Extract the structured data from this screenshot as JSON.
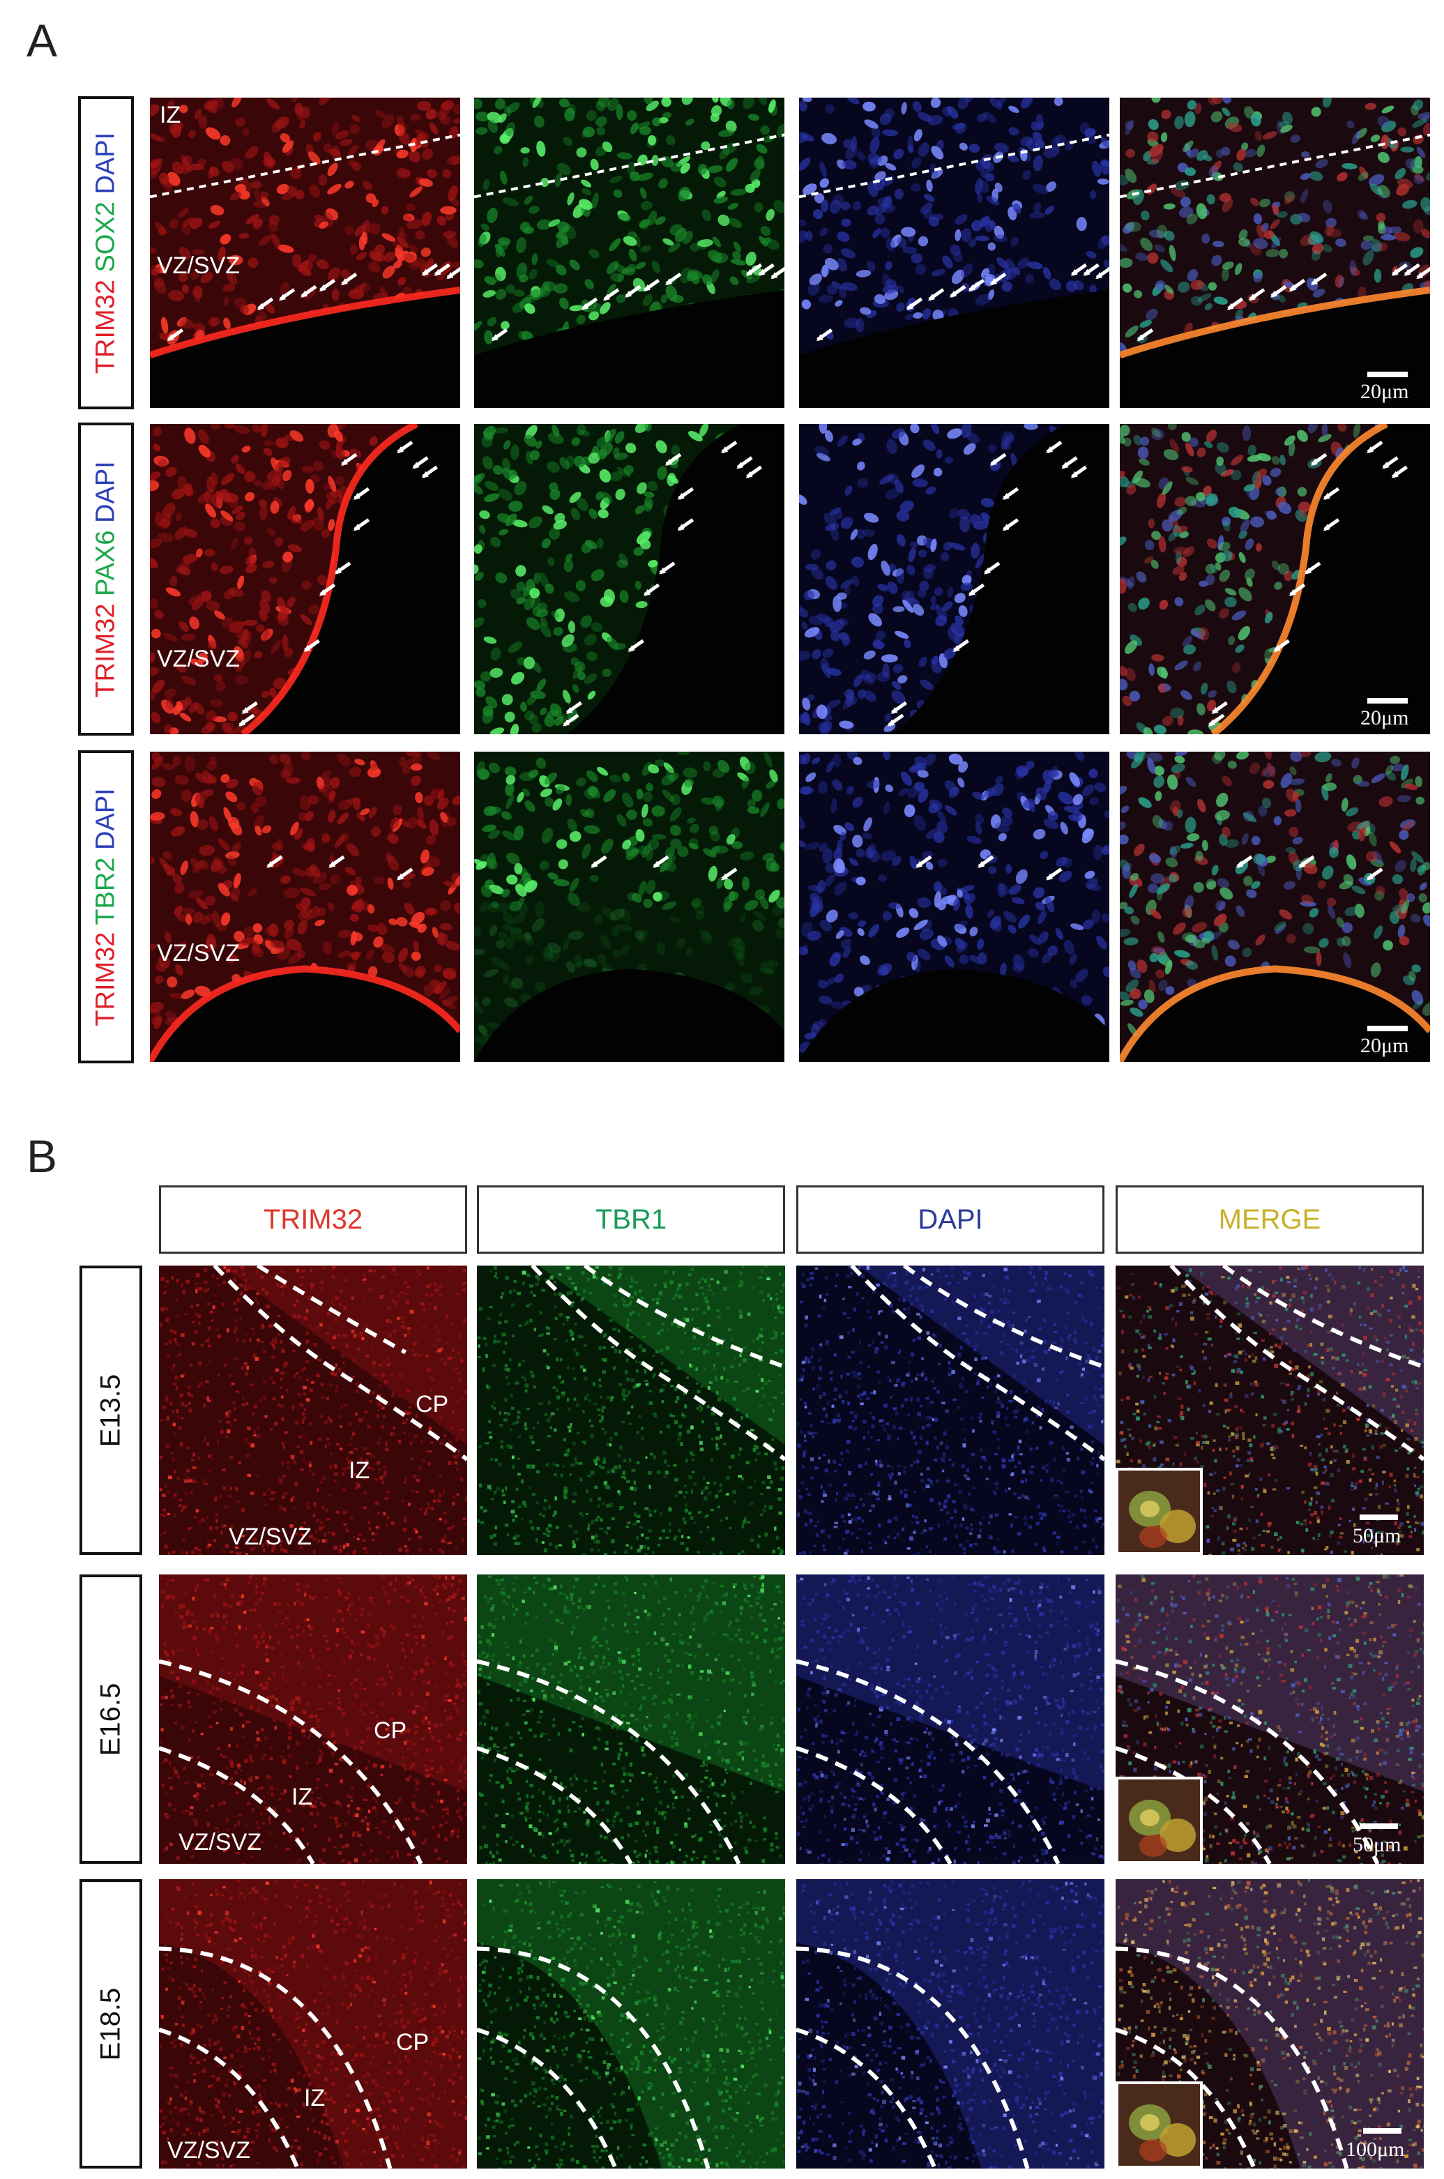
{
  "panels": {
    "a_letter": "A",
    "b_letter": "B"
  },
  "panel_a": {
    "rows": [
      {
        "stain_parts": [
          {
            "text": "TRIM32",
            "color": "#e0202a"
          },
          {
            "text": " SOX2",
            "color": "#1aa84a"
          },
          {
            "text": " DAPI",
            "color": "#2a3fb8"
          }
        ],
        "region_top": "IZ",
        "region_bottom": "VZ/SVZ",
        "scale": "20μm",
        "layout": "sox2"
      },
      {
        "stain_parts": [
          {
            "text": "TRIM32",
            "color": "#e0202a"
          },
          {
            "text": " PAX6",
            "color": "#1aa84a"
          },
          {
            "text": " DAPI",
            "color": "#2a3fb8"
          }
        ],
        "region_top": "",
        "region_bottom": "VZ/SVZ",
        "scale": "20μm",
        "layout": "pax6"
      },
      {
        "stain_parts": [
          {
            "text": "TRIM32",
            "color": "#e0202a"
          },
          {
            "text": " TBR2",
            "color": "#1aa84a"
          },
          {
            "text": " DAPI",
            "color": "#2a3fb8"
          }
        ],
        "region_top": "",
        "region_bottom": "VZ/SVZ",
        "scale": "20μm",
        "layout": "tbr2"
      }
    ]
  },
  "panel_b": {
    "columns": [
      {
        "label": "TRIM32",
        "color": "#e0362c"
      },
      {
        "label": "TBR1",
        "color": "#1a9a5a"
      },
      {
        "label": "DAPI",
        "color": "#2a3a9a"
      },
      {
        "label": "MERGE",
        "color": "#c8b02a"
      }
    ],
    "rows": [
      {
        "label": "E13.5",
        "cp": "CP",
        "iz": "IZ",
        "vz": "VZ/SVZ",
        "scale": "50μm"
      },
      {
        "label": "E16.5",
        "cp": "CP",
        "iz": "IZ",
        "vz": "VZ/SVZ",
        "scale": "50μm"
      },
      {
        "label": "E18.5",
        "cp": "CP",
        "iz": "IZ",
        "vz": "VZ/SVZ",
        "scale": "100μm"
      }
    ]
  },
  "channel_colors": {
    "red": "#c01818",
    "green": "#18a030",
    "blue": "#2838b0",
    "dark": "#0a0204"
  }
}
